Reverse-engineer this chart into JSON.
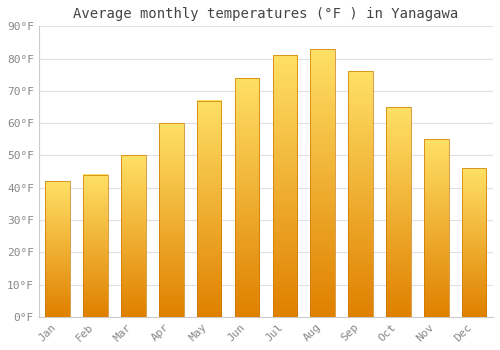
{
  "title": "Average monthly temperatures (°F ) in Yanagawa",
  "months": [
    "Jan",
    "Feb",
    "Mar",
    "Apr",
    "May",
    "Jun",
    "Jul",
    "Aug",
    "Sep",
    "Oct",
    "Nov",
    "Dec"
  ],
  "values": [
    42,
    44,
    50,
    60,
    67,
    74,
    81,
    83,
    76,
    65,
    55,
    46
  ],
  "bar_color_top": "#FFD966",
  "bar_color_bottom": "#FF8C00",
  "bar_color_mid": "#FFA500",
  "background_color": "#ffffff",
  "plot_bg_color": "#ffffff",
  "ylim": [
    0,
    90
  ],
  "yticks": [
    0,
    10,
    20,
    30,
    40,
    50,
    60,
    70,
    80,
    90
  ],
  "ytick_labels": [
    "0°F",
    "10°F",
    "20°F",
    "30°F",
    "40°F",
    "50°F",
    "60°F",
    "70°F",
    "80°F",
    "90°F"
  ],
  "title_fontsize": 10,
  "tick_fontsize": 8,
  "grid_color": "#e0e0e0",
  "tick_color": "#888888",
  "spine_color": "#cccccc",
  "bar_width": 0.65
}
